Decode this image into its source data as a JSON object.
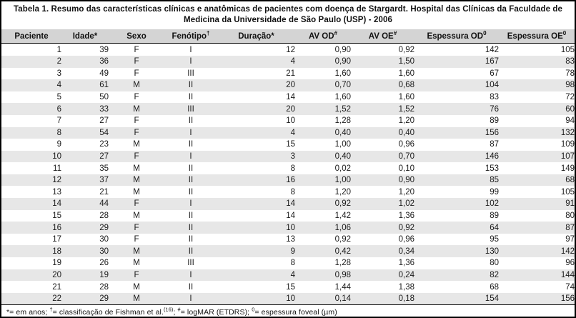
{
  "colors": {
    "frame_border": "#000000",
    "header_bg": "#d4d4d4",
    "row_alt_bg": "#e7e7e7",
    "text": "#1a1a1a",
    "background": "#ffffff"
  },
  "table": {
    "title": "Tabela 1. Resumo das características clínicas e anatômicas de pacientes com doença de Stargardt. Hospital das Clínicas da Faculdade de Medicina da Universidade de São Paulo (USP) - 2006",
    "columns": [
      {
        "label": "Paciente",
        "sup": ""
      },
      {
        "label": "Idade*",
        "sup": ""
      },
      {
        "label": "Sexo",
        "sup": ""
      },
      {
        "label": "Fenótipo",
        "sup": "†"
      },
      {
        "label": "Duração*",
        "sup": ""
      },
      {
        "label": "AV OD",
        "sup": "#"
      },
      {
        "label": "AV OE",
        "sup": "#"
      },
      {
        "label": "Espessura OD",
        "sup": "0"
      },
      {
        "label": "Espessura OE",
        "sup": "0"
      }
    ],
    "rows": [
      [
        "1",
        "39",
        "F",
        "I",
        "12",
        "0,90",
        "0,92",
        "142",
        "105"
      ],
      [
        "2",
        "36",
        "F",
        "I",
        "4",
        "0,90",
        "1,50",
        "167",
        "83"
      ],
      [
        "3",
        "49",
        "F",
        "III",
        "21",
        "1,60",
        "1,60",
        "67",
        "78"
      ],
      [
        "4",
        "61",
        "M",
        "II",
        "20",
        "0,70",
        "0,68",
        "104",
        "98"
      ],
      [
        "5",
        "50",
        "F",
        "II",
        "14",
        "1,60",
        "1,60",
        "83",
        "72"
      ],
      [
        "6",
        "33",
        "M",
        "III",
        "20",
        "1,52",
        "1,52",
        "76",
        "60"
      ],
      [
        "7",
        "27",
        "F",
        "II",
        "10",
        "1,28",
        "1,20",
        "89",
        "94"
      ],
      [
        "8",
        "54",
        "F",
        "I",
        "4",
        "0,40",
        "0,40",
        "156",
        "132"
      ],
      [
        "9",
        "23",
        "M",
        "II",
        "15",
        "1,00",
        "0,96",
        "87",
        "109"
      ],
      [
        "10",
        "27",
        "F",
        "I",
        "3",
        "0,40",
        "0,70",
        "146",
        "107"
      ],
      [
        "11",
        "35",
        "M",
        "II",
        "8",
        "0,02",
        "0,10",
        "153",
        "149"
      ],
      [
        "12",
        "37",
        "M",
        "II",
        "16",
        "1,00",
        "0,90",
        "85",
        "68"
      ],
      [
        "13",
        "21",
        "M",
        "II",
        "8",
        "1,20",
        "1,20",
        "99",
        "105"
      ],
      [
        "14",
        "44",
        "F",
        "I",
        "14",
        "0,92",
        "1,02",
        "102",
        "91"
      ],
      [
        "15",
        "28",
        "M",
        "II",
        "14",
        "1,42",
        "1,36",
        "89",
        "80"
      ],
      [
        "16",
        "29",
        "F",
        "II",
        "10",
        "1,06",
        "0,92",
        "64",
        "87"
      ],
      [
        "17",
        "30",
        "F",
        "II",
        "13",
        "0,92",
        "0,96",
        "95",
        "97"
      ],
      [
        "18",
        "30",
        "M",
        "II",
        "9",
        "0,42",
        "0,34",
        "130",
        "142"
      ],
      [
        "19",
        "26",
        "M",
        "III",
        "8",
        "1,28",
        "1,36",
        "80",
        "96"
      ],
      [
        "20",
        "19",
        "F",
        "I",
        "4",
        "0,98",
        "0,24",
        "82",
        "144"
      ],
      [
        "21",
        "28",
        "M",
        "II",
        "15",
        "1,44",
        "1,38",
        "68",
        "74"
      ],
      [
        "22",
        "29",
        "M",
        "I",
        "10",
        "0,14",
        "0,18",
        "154",
        "156"
      ]
    ],
    "footnote_segments": [
      {
        "text": "*= em anos; ",
        "sup": false
      },
      {
        "text": "†",
        "sup": true
      },
      {
        "text": "= classificação de Fishman et al.",
        "sup": false
      },
      {
        "text": "(16)",
        "sup": true
      },
      {
        "text": "; ",
        "sup": false
      },
      {
        "text": "#",
        "sup": true
      },
      {
        "text": "= logMAR (ETDRS); ",
        "sup": false
      },
      {
        "text": "0",
        "sup": true
      },
      {
        "text": "= espessura foveal (µm)",
        "sup": false
      }
    ]
  }
}
